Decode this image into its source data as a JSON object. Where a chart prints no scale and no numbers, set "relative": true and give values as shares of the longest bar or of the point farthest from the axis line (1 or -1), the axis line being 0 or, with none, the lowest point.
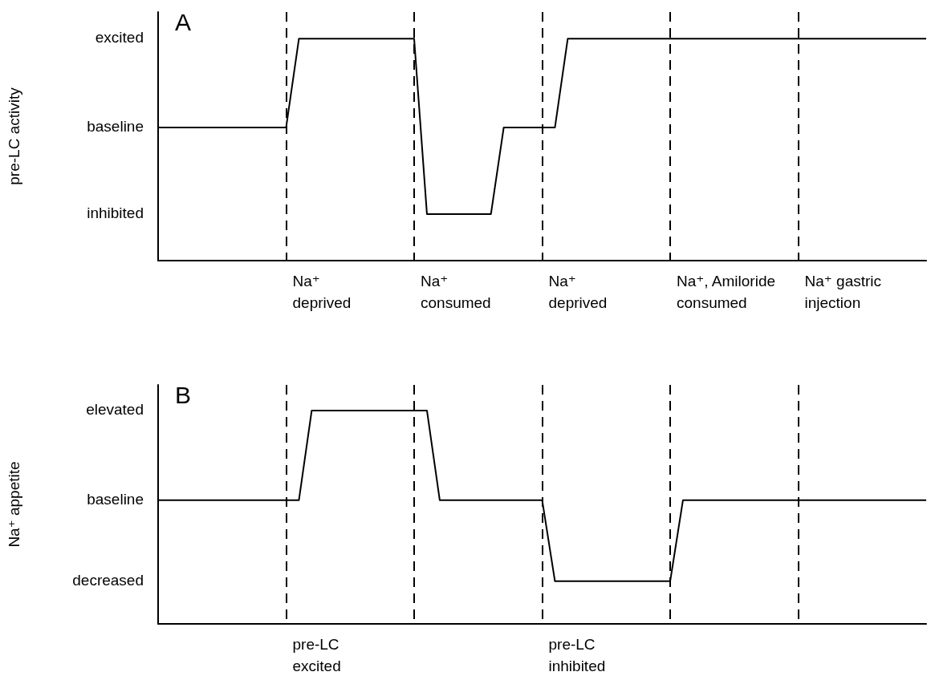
{
  "chart_data": [
    {
      "type": "line",
      "title": "A",
      "ylabel": "pre-LC activity",
      "relative": true,
      "tick_labels": false,
      "grid": "x",
      "marker": "none",
      "line_style": "solid",
      "categories": [
        null,
        null,
        null,
        null,
        null,
        null,
        null,
        null,
        null,
        null,
        null,
        null,
        null,
        null,
        null,
        null,
        null,
        null,
        null,
        null,
        null,
        null,
        null,
        null,
        null,
        null,
        null,
        null,
        null,
        null,
        null,
        null,
        null,
        null,
        null,
        null,
        null,
        null,
        null,
        null,
        null,
        null,
        null,
        null,
        null,
        null,
        null,
        null,
        null,
        null,
        null,
        null,
        null,
        null,
        null,
        null,
        null,
        null,
        null,
        null,
        null
      ],
      "series": [
        {
          "color": "#000000",
          "values": [
            0.6,
            0.6,
            0.6,
            0.6,
            0.6,
            0.6,
            0.6,
            0.6,
            0.6,
            0.6,
            0.6,
            1,
            1,
            1,
            1,
            1,
            1,
            1,
            1,
            1,
            1,
            0.21,
            0.21,
            0.21,
            0.21,
            0.21,
            0.21,
            0.6,
            0.6,
            0.6,
            0.6,
            0.6,
            1,
            1,
            1,
            1,
            1,
            1,
            1,
            1,
            1,
            1,
            1,
            1,
            1,
            1,
            1,
            1,
            1,
            1,
            1,
            1,
            1,
            1,
            1,
            1,
            1,
            1,
            1,
            1,
            1
          ]
        }
      ],
      "annotations": [
        "excited",
        "baseline",
        "inhibited",
        "Na⁺\ndeprived",
        "Na⁺\nconsumed",
        "Na⁺\ndeprived",
        "Na⁺, Amiloride\nconsumed",
        "Na⁺ gastric\ninjection"
      ]
    },
    {
      "type": "line",
      "title": "B",
      "ylabel": "Na⁺ appetite",
      "relative": true,
      "tick_labels": false,
      "grid": "x",
      "marker": "none",
      "line_style": "solid",
      "categories": [
        null,
        null,
        null,
        null,
        null,
        null,
        null,
        null,
        null,
        null,
        null,
        null,
        null,
        null,
        null,
        null,
        null,
        null,
        null,
        null,
        null,
        null,
        null,
        null,
        null,
        null,
        null,
        null,
        null,
        null,
        null,
        null,
        null,
        null,
        null,
        null,
        null,
        null,
        null,
        null,
        null,
        null,
        null,
        null,
        null,
        null,
        null,
        null,
        null,
        null,
        null,
        null,
        null,
        null,
        null,
        null,
        null,
        null,
        null,
        null,
        null
      ],
      "series": [
        {
          "color": "#000000",
          "values": [
            0.58,
            0.58,
            0.58,
            0.58,
            0.58,
            0.58,
            0.58,
            0.58,
            0.58,
            0.58,
            0.58,
            0.58,
            1,
            1,
            1,
            1,
            1,
            1,
            1,
            1,
            1,
            1,
            0.58,
            0.58,
            0.58,
            0.58,
            0.58,
            0.58,
            0.58,
            0.58,
            0.58,
            0.2,
            0.2,
            0.2,
            0.2,
            0.2,
            0.2,
            0.2,
            0.2,
            0.2,
            0.2,
            0.58,
            0.58,
            0.58,
            0.58,
            0.58,
            0.58,
            0.58,
            0.58,
            0.58,
            0.58,
            0.58,
            0.58,
            0.58,
            0.58,
            0.58,
            0.58,
            0.58,
            0.58,
            0.58,
            0.58
          ]
        }
      ],
      "annotations": [
        "elevated",
        "baseline",
        "decreased",
        "pre-LC\nexcited",
        null,
        "pre-LC\ninhibited"
      ]
    }
  ]
}
